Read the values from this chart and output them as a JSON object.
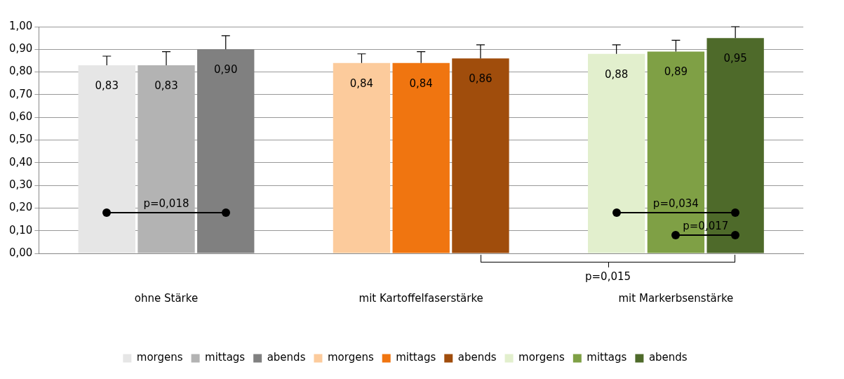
{
  "chart_data": {
    "type": "bar",
    "categories": [
      "ohne Stärke",
      "mit Kartoffelfaserstärke",
      "mit Markerbsenstärke"
    ],
    "series": [
      {
        "name": "morgens",
        "color": "#e6e6e6",
        "values": [
          0.83,
          null,
          null
        ],
        "errors": [
          [
            0.83,
            0.87
          ],
          null,
          null
        ],
        "value_labels": [
          "0,83",
          null,
          null
        ]
      },
      {
        "name": "mittags",
        "color": "#b3b3b3",
        "values": [
          0.83,
          null,
          null
        ],
        "errors": [
          [
            0.83,
            0.89
          ],
          null,
          null
        ],
        "value_labels": [
          "0,83",
          null,
          null
        ]
      },
      {
        "name": "abends",
        "color": "#808080",
        "values": [
          0.9,
          null,
          null
        ],
        "errors": [
          [
            0.9,
            0.96
          ],
          null,
          null
        ],
        "value_labels": [
          "0,90",
          null,
          null
        ]
      },
      {
        "name": "morgens",
        "color": "#fccb9c",
        "values": [
          null,
          0.84,
          null
        ],
        "errors": [
          null,
          [
            0.84,
            0.88
          ],
          null
        ],
        "value_labels": [
          null,
          "0,84",
          null
        ]
      },
      {
        "name": "mittags",
        "color": "#f07510",
        "values": [
          null,
          0.84,
          null
        ],
        "errors": [
          null,
          [
            0.84,
            0.89
          ],
          null
        ],
        "value_labels": [
          null,
          "0,84",
          null
        ]
      },
      {
        "name": "abends",
        "color": "#a04d0c",
        "values": [
          null,
          0.86,
          null
        ],
        "errors": [
          null,
          [
            0.86,
            0.92
          ],
          null
        ],
        "value_labels": [
          null,
          "0,86",
          null
        ]
      },
      {
        "name": "morgens",
        "color": "#e2efcd",
        "values": [
          null,
          null,
          0.88
        ],
        "errors": [
          null,
          null,
          [
            0.88,
            0.92
          ]
        ],
        "value_labels": [
          null,
          null,
          "0,88"
        ]
      },
      {
        "name": "mittags",
        "color": "#7fa045",
        "values": [
          null,
          null,
          0.89
        ],
        "errors": [
          null,
          null,
          [
            0.89,
            0.94
          ]
        ],
        "value_labels": [
          null,
          null,
          "0,89"
        ]
      },
      {
        "name": "abends",
        "color": "#4e6a2a",
        "values": [
          null,
          null,
          0.95
        ],
        "errors": [
          null,
          null,
          [
            0.95,
            1.0
          ]
        ],
        "value_labels": [
          null,
          null,
          "0,95"
        ]
      }
    ],
    "ylim": [
      0,
      1
    ],
    "yticks": [
      {
        "value": 0,
        "label": "0,00"
      },
      {
        "value": 0.1,
        "label": "0,10"
      },
      {
        "value": 0.2,
        "label": "0,20"
      },
      {
        "value": 0.3,
        "label": "0,30"
      },
      {
        "value": 0.4,
        "label": "0,40"
      },
      {
        "value": 0.5,
        "label": "0,50"
      },
      {
        "value": 0.6,
        "label": "0,60"
      },
      {
        "value": 0.7,
        "label": "0,70"
      },
      {
        "value": 0.8,
        "label": "0,80"
      },
      {
        "value": 0.9,
        "label": "0,90"
      },
      {
        "value": 1,
        "label": "1,00"
      }
    ],
    "grid": "y",
    "legend": "bottom",
    "annotations": [
      "p=0,018",
      "p=0,034",
      "p=0,017",
      "p=0,015"
    ]
  }
}
